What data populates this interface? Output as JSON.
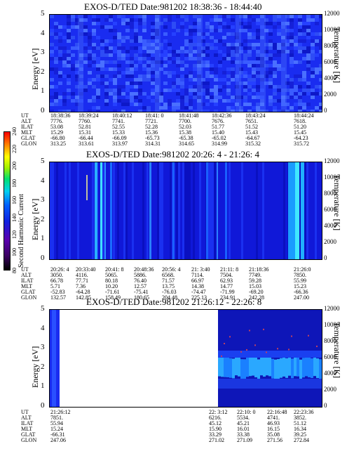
{
  "chart_data": [
    {
      "type": "heatmap",
      "title": "EXOS-D/TED   Date:981202  18:38:36 - 18:44:40",
      "ylabel": "Energy [eV]",
      "y2label": "Temperature [K]",
      "ylim": [
        0,
        5
      ],
      "y2lim": [
        0,
        12000
      ],
      "yticks": [
        "0",
        "1",
        "2",
        "3",
        "4",
        "5"
      ],
      "y2ticks": [
        "0",
        "2000",
        "4000",
        "6000",
        "8000",
        "10000",
        "12000"
      ],
      "row_labels": [
        "UT",
        "ALT",
        "ILAT",
        "MLT",
        "GLAT",
        "GLON"
      ],
      "columns": [
        {
          "UT": "18:38:36",
          "ALT": "7776.",
          "ILAT": "53.08",
          "MLT": "15.29",
          "GLAT": "-66.80",
          "GLON": "313.25"
        },
        {
          "UT": "18:39:24",
          "ALT": "7760.",
          "ILAT": "52.81",
          "MLT": "15.31",
          "GLAT": "-66.44",
          "GLON": "313.61"
        },
        {
          "UT": "18:40:12",
          "ALT": "7741.",
          "ILAT": "52.55",
          "MLT": "15.33",
          "GLAT": "-66.09",
          "GLON": "313.97"
        },
        {
          "UT": "18:41: 0",
          "ALT": "7721.",
          "ILAT": "52.28",
          "MLT": "15.36",
          "GLAT": "-65.73",
          "GLON": "314.31"
        },
        {
          "UT": "18:41:48",
          "ALT": "7700.",
          "ILAT": "52.03",
          "MLT": "15.38",
          "GLAT": "-65.38",
          "GLON": "314.65"
        },
        {
          "UT": "18:42:36",
          "ALT": "7676.",
          "ILAT": "51.77",
          "MLT": "15.40",
          "GLAT": "-65.02",
          "GLON": "314.99"
        },
        {
          "UT": "18:43:24",
          "ALT": "7651.",
          "ILAT": "51.52",
          "MLT": "15.43",
          "GLAT": "-64.67",
          "GLON": "315.32"
        },
        {
          "UT": "18:44:24",
          "ALT": "7618.",
          "ILAT": "51.20",
          "MLT": "15.45",
          "GLAT": "-64.23",
          "GLON": "315.72"
        }
      ]
    },
    {
      "type": "heatmap",
      "title": "EXOS-D/TED   Date:981202  20:26: 4 - 21:26: 4",
      "ylabel": "Energy [eV]",
      "y2label": "Temperature [K]",
      "colorbar_label": "Second Harmonic Current",
      "colorbar_ticks": [
        "80",
        "100",
        "120",
        "140",
        "160",
        "180",
        "200",
        "220",
        "240"
      ],
      "ylim": [
        0,
        5
      ],
      "y2lim": [
        0,
        12000
      ],
      "yticks": [
        "0",
        "1",
        "2",
        "3",
        "4",
        "5"
      ],
      "y2ticks": [
        "0",
        "2000",
        "4000",
        "6000",
        "8000",
        "10000",
        "12000"
      ],
      "row_labels": [
        "UT",
        "ALT",
        "ILAT",
        "MLT",
        "GLAT",
        "GLON"
      ],
      "columns": [
        {
          "UT": "20:26: 4",
          "ALT": "3050.",
          "ILAT": "66.78",
          "MLT": "5.71",
          "GLAT": "-52.83",
          "GLON": "132.57"
        },
        {
          "UT": "20:33:40",
          "ALT": "4116.",
          "ILAT": "77.71",
          "MLT": "7.36",
          "GLAT": "-64.28",
          "GLON": "142.85"
        },
        {
          "UT": "20:41: 8",
          "ALT": "5065.",
          "ILAT": "80.18",
          "MLT": "10.20",
          "GLAT": "-71.61",
          "GLON": "158.49"
        },
        {
          "UT": "20:48:36",
          "ALT": "5886.",
          "ILAT": "76.40",
          "MLT": "12.57",
          "GLAT": "-75.41",
          "GLON": "180.65"
        },
        {
          "UT": "20:56: 4",
          "ALT": "6568.",
          "ILAT": "71.57",
          "MLT": "13.75",
          "GLAT": "-76.03",
          "GLON": "204.48"
        },
        {
          "UT": "21: 3:40",
          "ALT": "7114.",
          "ILAT": "66.97",
          "MLT": "14.38",
          "GLAT": "-74.47",
          "GLON": "225.13"
        },
        {
          "UT": "21:11: 8",
          "ALT": "7504.",
          "ILAT": "62.93",
          "MLT": "14.77",
          "GLAT": "-71.99",
          "GLON": "234.91"
        },
        {
          "UT": "21:18:36",
          "ALT": "7749.",
          "ILAT": "59.28",
          "MLT": "15.03",
          "GLAT": "-69.20",
          "GLON": "242.28"
        },
        {
          "UT": "21:26:0",
          "ALT": "7850.",
          "ILAT": "55.99",
          "MLT": "15.23",
          "GLAT": "-66.36",
          "GLON": "247.00"
        }
      ]
    },
    {
      "type": "heatmap",
      "title": "EXOS-D/TED   Date:981202  21:26:12 - 22:26: 8",
      "ylabel": "Energy [eV]",
      "y2label": "Temperature [K]",
      "ylim": [
        0,
        5
      ],
      "y2lim": [
        0,
        12000
      ],
      "yticks": [
        "0",
        "1",
        "2",
        "3",
        "4",
        "5"
      ],
      "y2ticks": [
        "0",
        "2000",
        "4000",
        "6000",
        "8000",
        "10000",
        "12000"
      ],
      "row_labels": [
        "UT",
        "ALT",
        "ILAT",
        "MLT",
        "GLAT",
        "GLON"
      ],
      "columns": [
        {
          "UT": "21:26:12",
          "ALT": "7851.",
          "ILAT": "55.94",
          "MLT": "15.24",
          "GLAT": "-66.31",
          "GLON": "247.06"
        },
        {
          "UT": "22: 3:12",
          "ALT": "6216.",
          "ILAT": "45.12",
          "MLT": "15.90",
          "GLAT": "33.29",
          "GLON": "271.02"
        },
        {
          "UT": "22:10: 0",
          "ALT": "5534.",
          "ILAT": "45.21",
          "MLT": "16.01",
          "GLAT": "33.38",
          "GLON": "271.09"
        },
        {
          "UT": "22:16:48",
          "ALT": "4741.",
          "ILAT": "46.93",
          "MLT": "16.15",
          "GLAT": "35.08",
          "GLON": "271.56"
        },
        {
          "UT": "22:23:36",
          "ALT": "3852.",
          "ILAT": "51.12",
          "MLT": "16.34",
          "GLAT": "39.25",
          "GLON": "272.84"
        }
      ]
    }
  ]
}
